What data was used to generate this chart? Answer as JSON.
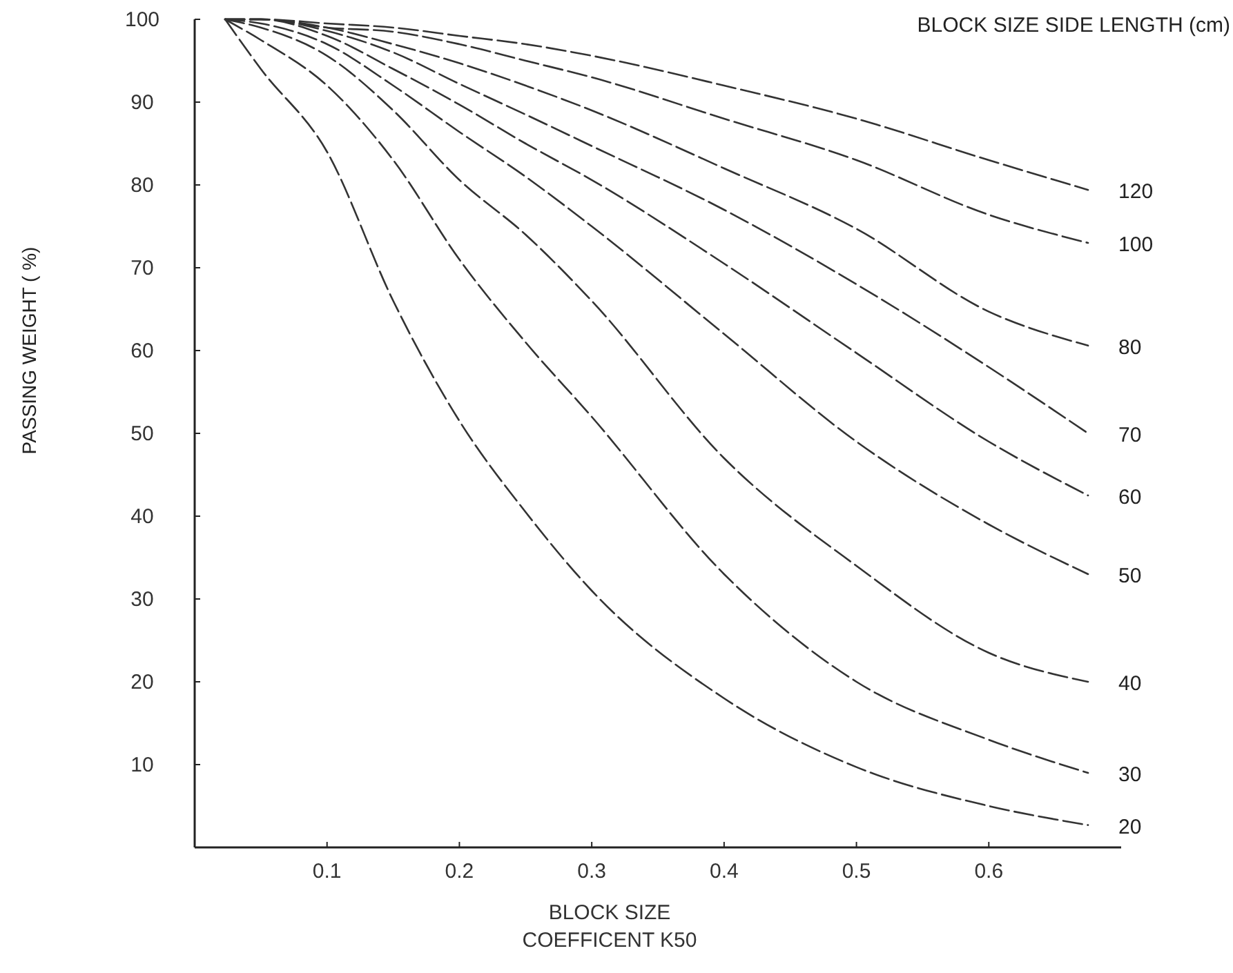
{
  "chart_data": {
    "type": "line",
    "legend_title": "BLOCK SIZE SIDE LENGTH (cm)",
    "xlabel": "BLOCK SIZE\nCOEFFICENT K50",
    "ylabel": "PASSING WEIGHT ( %)",
    "xlim": [
      0,
      0.7
    ],
    "xticks": [
      0.1,
      0.2,
      0.3,
      0.4,
      0.5,
      0.6
    ],
    "ylim": [
      0,
      100
    ],
    "yticks": [
      10,
      20,
      30,
      40,
      50,
      60,
      70,
      80,
      90,
      100
    ],
    "grid": false,
    "marker": "none",
    "line_style": "dashed",
    "x": [
      0.023,
      0.05,
      0.1,
      0.15,
      0.2,
      0.25,
      0.3,
      0.4,
      0.5,
      0.6,
      0.675
    ],
    "series": [
      {
        "name": "120",
        "color": "#333333",
        "values": [
          100,
          100,
          99.5,
          99,
          98,
          97,
          95.6,
          92,
          88,
          83,
          79.4
        ]
      },
      {
        "name": "100",
        "color": "#333333",
        "values": [
          100,
          100,
          99,
          98.5,
          97,
          95,
          93,
          88,
          83,
          76.4,
          73
        ]
      },
      {
        "name": "80",
        "color": "#333333",
        "values": [
          100,
          100,
          99,
          97,
          94.7,
          92,
          89,
          82,
          74.7,
          64.7,
          60.6
        ]
      },
      {
        "name": "70",
        "color": "#333333",
        "values": [
          100,
          100,
          98.6,
          96,
          92.2,
          88.5,
          84.7,
          77,
          68,
          58,
          50
        ]
      },
      {
        "name": "60",
        "color": "#333333",
        "values": [
          100,
          100,
          98,
          94,
          89.7,
          85,
          80.6,
          70.5,
          59.7,
          49,
          42.5
        ]
      },
      {
        "name": "50",
        "color": "#333333",
        "values": [
          100,
          99.5,
          97,
          92,
          86.4,
          81,
          75,
          62,
          49,
          39,
          33
        ]
      },
      {
        "name": "40",
        "color": "#333333",
        "values": [
          100,
          99,
          95.6,
          89,
          80.6,
          74,
          66,
          47,
          34,
          23.5,
          20
        ]
      },
      {
        "name": "30",
        "color": "#333333",
        "values": [
          100,
          97.5,
          92,
          83,
          71,
          61,
          52,
          33,
          20,
          13,
          9
        ]
      },
      {
        "name": "20",
        "color": "#333333",
        "values": [
          100,
          94,
          84,
          66,
          51.5,
          40.5,
          31,
          18,
          9.7,
          5,
          2.7
        ]
      }
    ]
  }
}
